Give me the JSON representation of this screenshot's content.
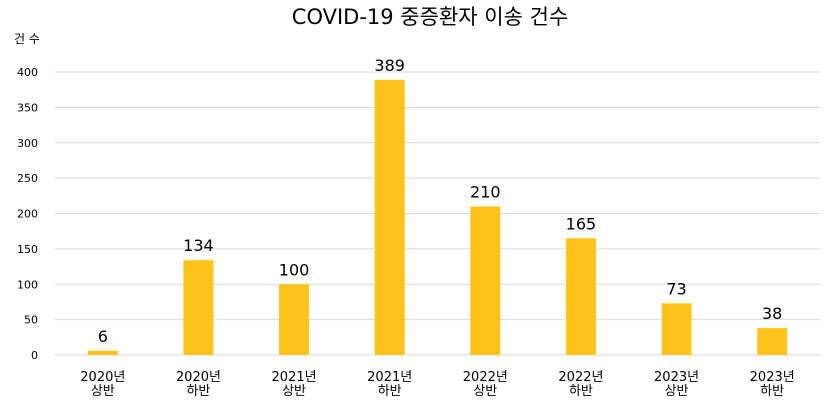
{
  "chart_data": {
    "type": "bar",
    "title": "COVID-19 중증환자 이송 건수",
    "ylabel": "건 수",
    "xlabel": "",
    "categories": [
      [
        "2020년",
        "상반"
      ],
      [
        "2020년",
        "하반"
      ],
      [
        "2021년",
        "상반"
      ],
      [
        "2021년",
        "하반"
      ],
      [
        "2022년",
        "상반"
      ],
      [
        "2022년",
        "하반"
      ],
      [
        "2023년",
        "상반"
      ],
      [
        "2023년",
        "하반"
      ]
    ],
    "values": [
      6,
      134,
      100,
      389,
      210,
      165,
      73,
      38
    ],
    "ylim": [
      0,
      400
    ],
    "yticks": [
      0,
      50,
      100,
      150,
      200,
      250,
      300,
      350,
      400
    ],
    "grid": true,
    "legend": "none",
    "bar_color": "#ffc31c",
    "grid_color": "#d9d9d9"
  }
}
